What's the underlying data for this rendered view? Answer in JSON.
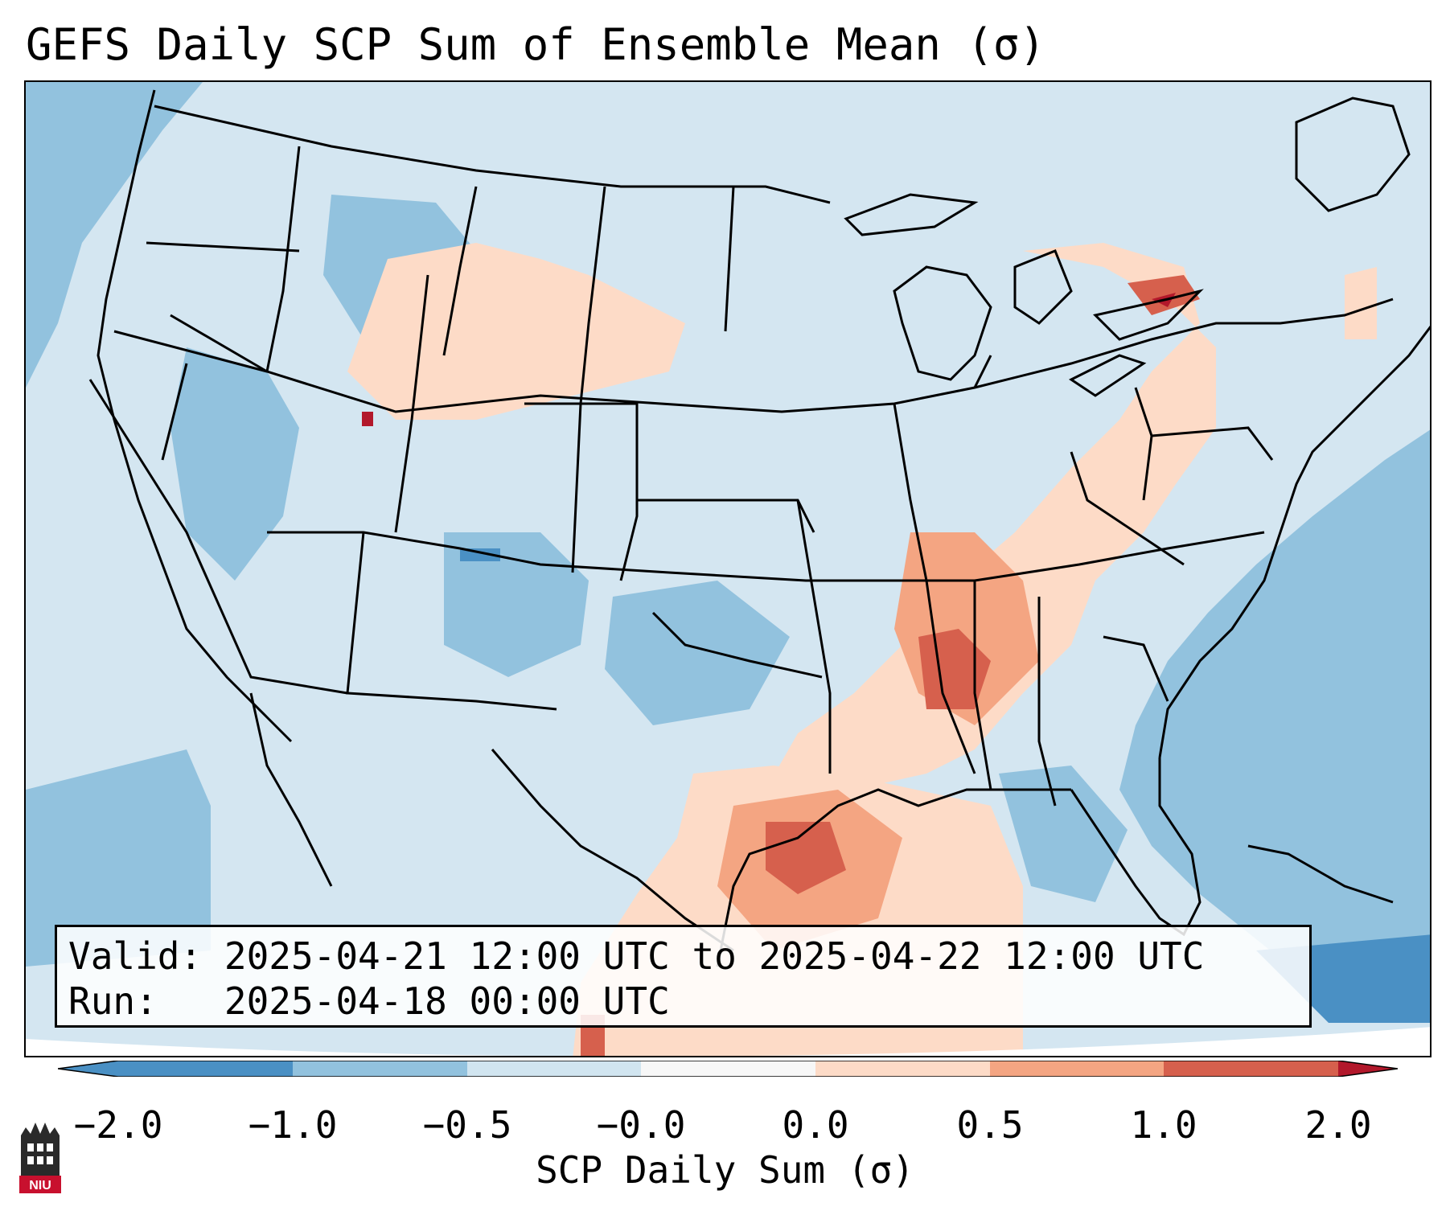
{
  "title": "GEFS Daily SCP Sum of Ensemble Mean (σ)",
  "info": {
    "valid_label": "Valid:",
    "valid_value": "2025-04-21 12:00 UTC to 2025-04-22 12:00 UTC",
    "run_label": "Run:",
    "run_value": "2025-04-18 00:00 UTC"
  },
  "colorbar": {
    "label": "SCP Daily Sum (σ)",
    "ticks": [
      "−2.0",
      "−1.0",
      "−0.5",
      "−0.0",
      "0.0",
      "0.5",
      "1.0",
      "2.0"
    ],
    "colors": [
      "#4a90c4",
      "#92c2de",
      "#d1e5f0",
      "#f7f7f7",
      "#fddbc7",
      "#f4a582",
      "#d6604d",
      "#b2182b"
    ]
  },
  "logo": {
    "text": "NIU",
    "icon": "university-tower-icon"
  }
}
